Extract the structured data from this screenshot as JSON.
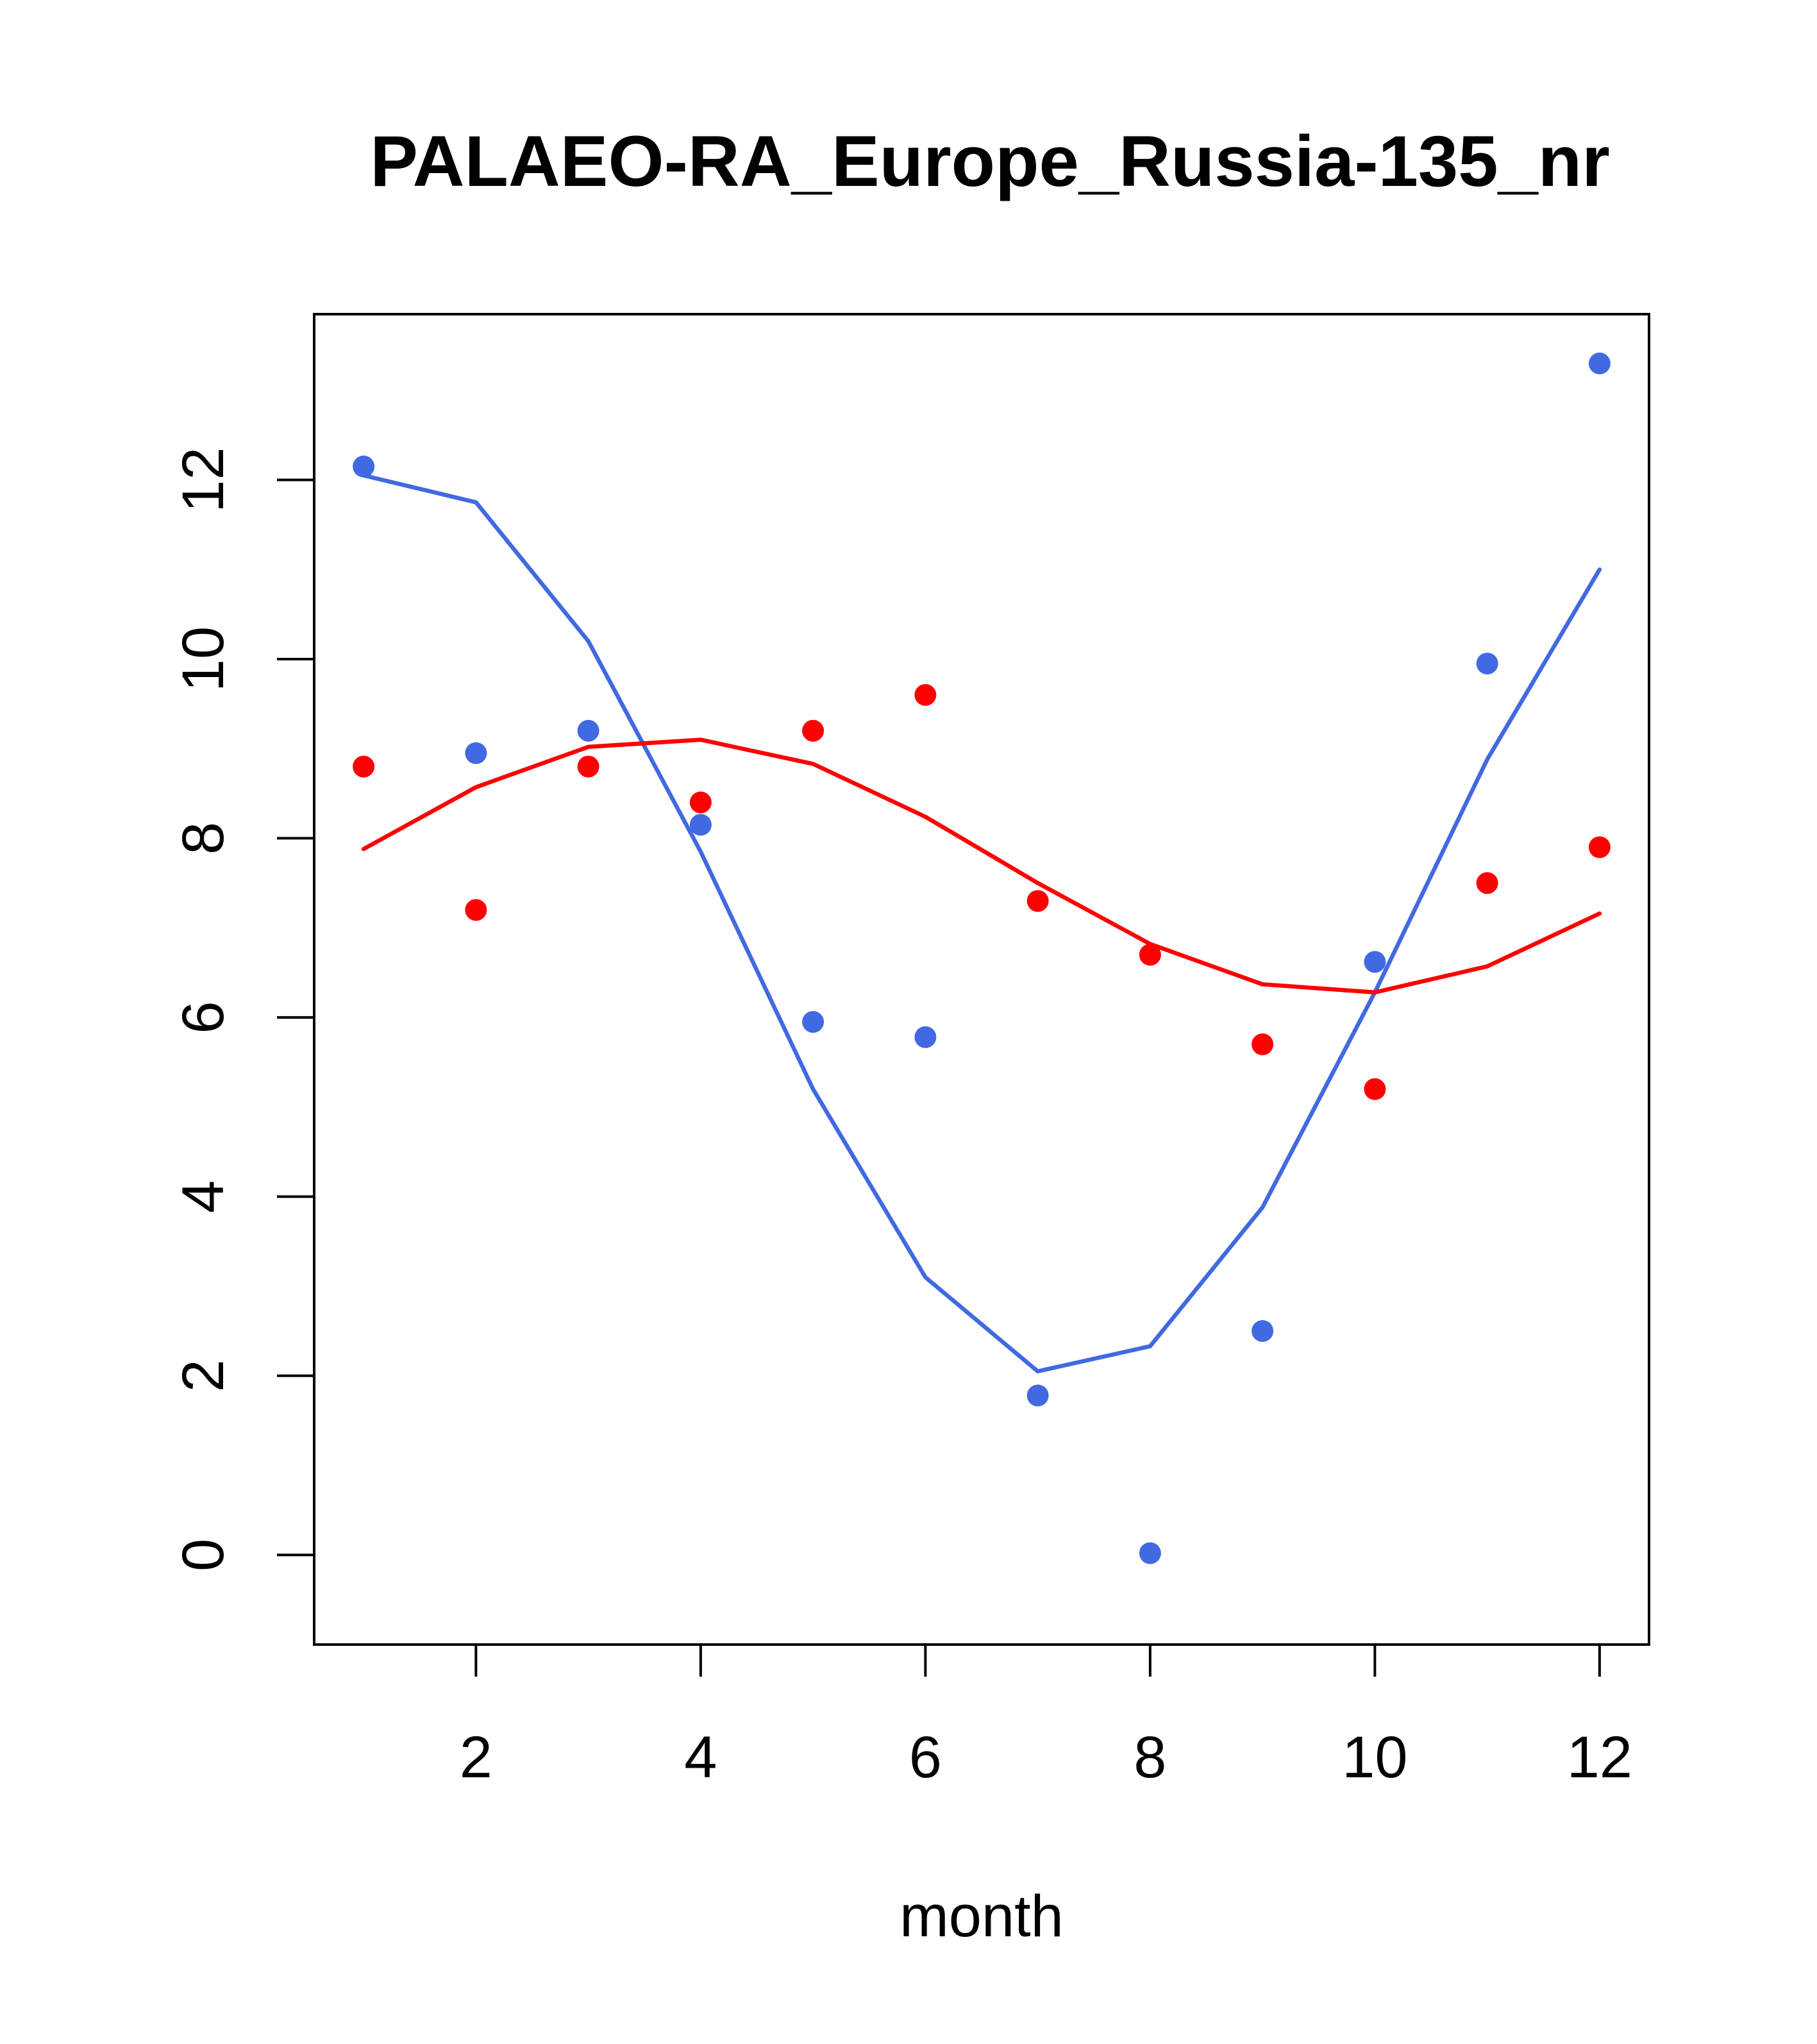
{
  "chart_data": {
    "type": "line",
    "title": "PALAEO-RA_Europe_Russia-135_nr",
    "xlabel": "month",
    "ylabel": "",
    "xlim": [
      0.56,
      12.44
    ],
    "ylim": [
      -1.0,
      13.85
    ],
    "x_ticks": [
      2,
      4,
      6,
      8,
      10,
      12
    ],
    "x_tick_labels": [
      "2",
      "4",
      "6",
      "8",
      "10",
      "12"
    ],
    "y_ticks": [
      0,
      2,
      4,
      6,
      8,
      10,
      12
    ],
    "y_tick_labels": [
      "0",
      "2",
      "4",
      "6",
      "8",
      "10",
      "12"
    ],
    "grid": false,
    "legend": null,
    "x": [
      1,
      2,
      3,
      4,
      5,
      6,
      7,
      8,
      9,
      10,
      11,
      12
    ],
    "series": [
      {
        "name": "blue points",
        "kind": "scatter",
        "color": "#4169E1",
        "values": [
          12.15,
          8.95,
          9.2,
          8.15,
          5.95,
          5.78,
          1.78,
          0.02,
          2.5,
          6.62,
          9.95,
          13.3
        ]
      },
      {
        "name": "blue line",
        "kind": "line",
        "color": "#4169E1",
        "values": [
          12.05,
          11.75,
          10.2,
          7.85,
          5.2,
          3.1,
          2.05,
          2.33,
          3.88,
          6.28,
          8.88,
          11.0
        ]
      },
      {
        "name": "red points",
        "kind": "scatter",
        "color": "#FF0000",
        "values": [
          8.8,
          7.2,
          8.8,
          8.4,
          9.2,
          9.6,
          7.3,
          6.7,
          5.7,
          5.2,
          7.5,
          7.9
        ]
      },
      {
        "name": "red line",
        "kind": "line",
        "color": "#FF0000",
        "values": [
          7.88,
          8.57,
          9.02,
          9.1,
          8.83,
          8.24,
          7.5,
          6.82,
          6.37,
          6.28,
          6.57,
          7.16
        ]
      }
    ]
  }
}
